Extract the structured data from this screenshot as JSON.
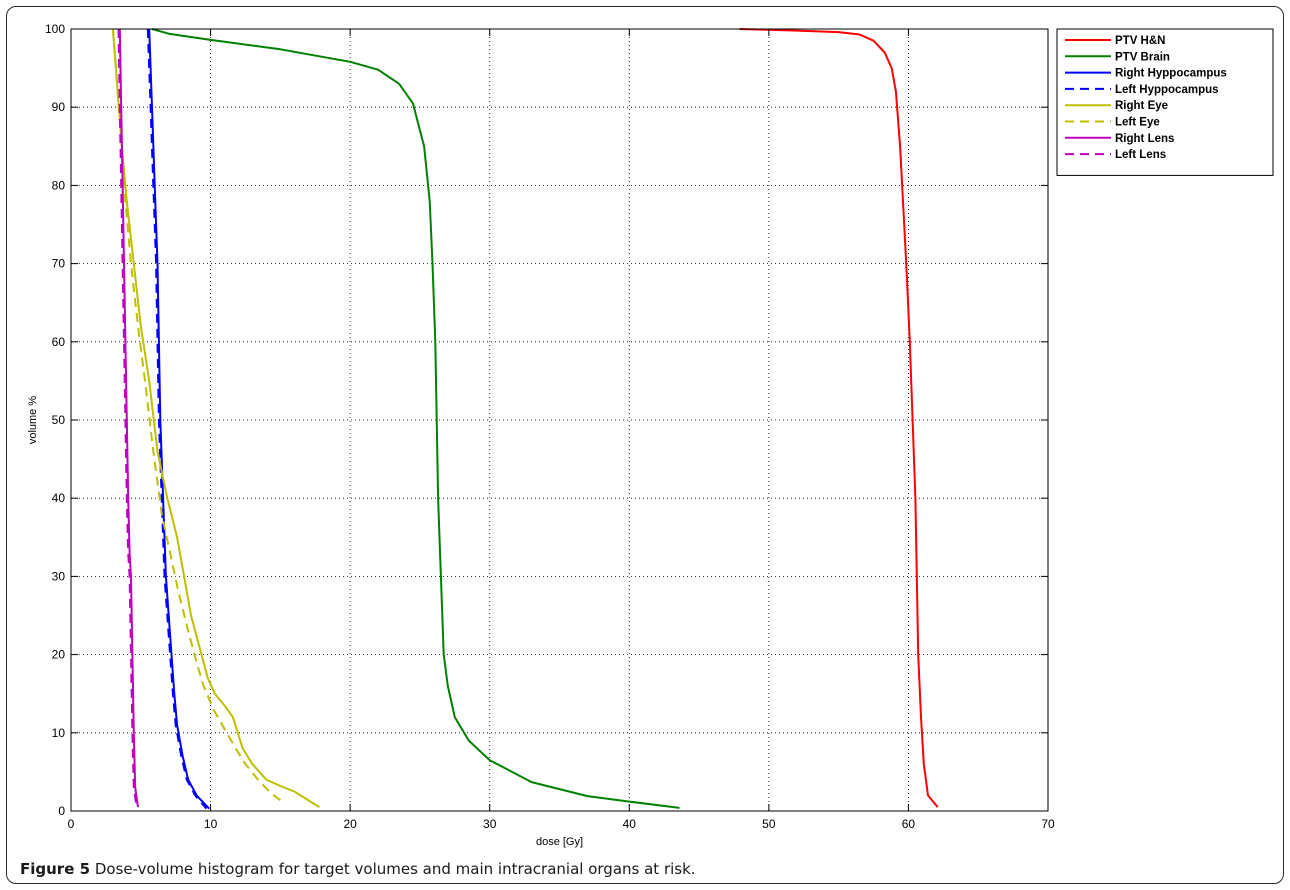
{
  "caption": {
    "label": "Figure 5",
    "text": " Dose-volume histogram for target volumes and main intracranial organs at risk."
  },
  "chart_data": {
    "type": "line",
    "title": "",
    "xlabel": "dose [Gy]",
    "ylabel": "volume %",
    "xlim": [
      0,
      70
    ],
    "ylim": [
      0,
      100
    ],
    "xticks": [
      0,
      10,
      20,
      30,
      40,
      50,
      60,
      70
    ],
    "yticks": [
      0,
      10,
      20,
      30,
      40,
      50,
      60,
      70,
      80,
      90,
      100
    ],
    "grid": true,
    "legend_position": "right",
    "series": [
      {
        "name": "PTV H&N",
        "color": "#ff0000",
        "dash": "solid",
        "points": [
          [
            47.9,
            100
          ],
          [
            52,
            99.8
          ],
          [
            55,
            99.6
          ],
          [
            56.5,
            99.3
          ],
          [
            57.5,
            98.5
          ],
          [
            58.3,
            97
          ],
          [
            58.8,
            95
          ],
          [
            59.1,
            92
          ],
          [
            59.4,
            85
          ],
          [
            59.7,
            75
          ],
          [
            59.9,
            68
          ],
          [
            60.1,
            60
          ],
          [
            60.3,
            50
          ],
          [
            60.5,
            40
          ],
          [
            60.6,
            30
          ],
          [
            60.7,
            20
          ],
          [
            60.9,
            12
          ],
          [
            61.1,
            6
          ],
          [
            61.4,
            2
          ],
          [
            62.1,
            0.5
          ]
        ]
      },
      {
        "name": "PTV Brain",
        "color": "#008000",
        "dash": "solid",
        "points": [
          [
            5.8,
            100
          ],
          [
            7,
            99.4
          ],
          [
            10,
            98.6
          ],
          [
            15,
            97.4
          ],
          [
            20,
            95.8
          ],
          [
            22,
            94.8
          ],
          [
            23.5,
            93
          ],
          [
            24.5,
            90.5
          ],
          [
            25.3,
            85
          ],
          [
            25.7,
            78
          ],
          [
            25.9,
            70
          ],
          [
            26.1,
            60
          ],
          [
            26.2,
            50
          ],
          [
            26.3,
            40
          ],
          [
            26.5,
            30
          ],
          [
            26.7,
            20
          ],
          [
            27,
            16
          ],
          [
            27.5,
            12
          ],
          [
            28.5,
            9
          ],
          [
            30,
            6.5
          ],
          [
            33,
            3.7
          ],
          [
            37,
            1.9
          ],
          [
            40,
            1.2
          ],
          [
            43.6,
            0.4
          ]
        ]
      },
      {
        "name": "Right Hyppocampus",
        "color": "#0000ff",
        "dash": "solid",
        "points": [
          [
            5.6,
            100
          ],
          [
            5.7,
            95
          ],
          [
            5.8,
            90
          ],
          [
            6,
            80
          ],
          [
            6.2,
            70
          ],
          [
            6.3,
            60
          ],
          [
            6.4,
            50
          ],
          [
            6.6,
            40
          ],
          [
            6.8,
            30
          ],
          [
            7,
            25
          ],
          [
            7.2,
            20
          ],
          [
            7.4,
            15
          ],
          [
            7.6,
            11
          ],
          [
            8,
            7
          ],
          [
            8.4,
            4
          ],
          [
            9,
            2
          ],
          [
            9.9,
            0.3
          ]
        ]
      },
      {
        "name": "Left Hyppocampus",
        "color": "#0000ff",
        "dash": "dashed",
        "points": [
          [
            5.5,
            100
          ],
          [
            5.6,
            95
          ],
          [
            5.7,
            90
          ],
          [
            5.9,
            80
          ],
          [
            6.1,
            70
          ],
          [
            6.2,
            60
          ],
          [
            6.3,
            50
          ],
          [
            6.5,
            40
          ],
          [
            6.7,
            30
          ],
          [
            6.9,
            25
          ],
          [
            7.1,
            20
          ],
          [
            7.3,
            15
          ],
          [
            7.5,
            11
          ],
          [
            7.9,
            7
          ],
          [
            8.3,
            4
          ],
          [
            8.9,
            2
          ],
          [
            9.7,
            0.3
          ]
        ]
      },
      {
        "name": "Right Eye",
        "color": "#bfbf00",
        "dash": "solid",
        "points": [
          [
            3,
            100
          ],
          [
            3.3,
            93
          ],
          [
            3.6,
            86
          ],
          [
            4,
            78
          ],
          [
            4.5,
            70
          ],
          [
            5,
            62
          ],
          [
            5.6,
            55
          ],
          [
            6.2,
            46
          ],
          [
            6.9,
            40
          ],
          [
            7.6,
            35
          ],
          [
            8.1,
            30
          ],
          [
            8.6,
            25
          ],
          [
            9.2,
            21
          ],
          [
            9.8,
            17
          ],
          [
            10.3,
            15
          ],
          [
            11,
            13.5
          ],
          [
            11.6,
            12
          ],
          [
            12.3,
            8
          ],
          [
            13,
            6
          ],
          [
            14,
            4
          ],
          [
            15,
            3.2
          ],
          [
            16,
            2.5
          ],
          [
            17.8,
            0.5
          ]
        ]
      },
      {
        "name": "Left Eye",
        "color": "#bfbf00",
        "dash": "dashed",
        "points": [
          [
            3,
            100
          ],
          [
            3.3,
            93
          ],
          [
            3.6,
            86
          ],
          [
            3.9,
            78
          ],
          [
            4.3,
            70
          ],
          [
            4.8,
            62
          ],
          [
            5.3,
            55
          ],
          [
            5.9,
            46
          ],
          [
            6.5,
            38
          ],
          [
            7.1,
            33
          ],
          [
            7.7,
            28
          ],
          [
            8.4,
            23
          ],
          [
            9,
            19
          ],
          [
            9.5,
            16
          ],
          [
            10.2,
            13
          ],
          [
            11,
            10.5
          ],
          [
            11.8,
            8
          ],
          [
            12.5,
            6
          ],
          [
            13.4,
            4
          ],
          [
            14.3,
            2.3
          ],
          [
            15.3,
            1
          ]
        ]
      },
      {
        "name": "Right Lens",
        "color": "#bf00bf",
        "dash": "solid",
        "points": [
          [
            3.5,
            100
          ],
          [
            3.6,
            90
          ],
          [
            3.7,
            80
          ],
          [
            3.8,
            70
          ],
          [
            3.9,
            60
          ],
          [
            4,
            50
          ],
          [
            4.1,
            40
          ],
          [
            4.2,
            33
          ],
          [
            4.3,
            30
          ],
          [
            4.4,
            20
          ],
          [
            4.5,
            10
          ],
          [
            4.6,
            3
          ],
          [
            4.8,
            0.5
          ]
        ]
      },
      {
        "name": "Left Lens",
        "color": "#bf00bf",
        "dash": "dashed",
        "points": [
          [
            3.4,
            100
          ],
          [
            3.5,
            90
          ],
          [
            3.6,
            80
          ],
          [
            3.7,
            70
          ],
          [
            3.8,
            60
          ],
          [
            3.9,
            50
          ],
          [
            4,
            40
          ],
          [
            4.1,
            33
          ],
          [
            4.2,
            30
          ],
          [
            4.3,
            20
          ],
          [
            4.4,
            10
          ],
          [
            4.5,
            3
          ],
          [
            4.7,
            0.5
          ]
        ]
      }
    ]
  }
}
